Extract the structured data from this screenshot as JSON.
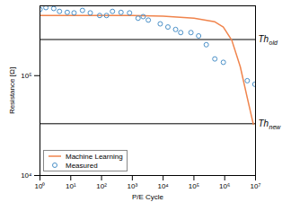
{
  "chart_data": {
    "type": "line",
    "x_label": "P/E Cycle",
    "y_label": "Resistance [Ω]",
    "log": true,
    "grid": false,
    "legend": "lower left",
    "xlim": [
      1,
      10000000
    ],
    "ylim": [
      10000,
      500000
    ],
    "xticks": [
      {
        "value": 1,
        "label": "10⁰"
      },
      {
        "value": 10,
        "label": "10¹"
      },
      {
        "value": 100,
        "label": "10²"
      },
      {
        "value": 1000,
        "label": "10³"
      },
      {
        "value": 10000,
        "label": "10⁴"
      },
      {
        "value": 100000,
        "label": "10⁵"
      },
      {
        "value": 1000000,
        "label": "10⁶"
      },
      {
        "value": 10000000,
        "label": "10⁷"
      }
    ],
    "yticks": [
      {
        "value": 10000,
        "label": "10⁴"
      },
      {
        "value": 100000,
        "label": "10⁵"
      }
    ],
    "series": [
      {
        "name": "Machine Learning",
        "type": "line",
        "line_style": "solid",
        "color": "#f0844c",
        "x": [
          1,
          1000,
          10000,
          100000,
          480000,
          900000,
          1700000,
          3200000,
          5400000,
          8500000
        ],
        "values": [
          400000,
          400000,
          395000,
          376000,
          346000,
          307000,
          226000,
          123000,
          60000,
          32600
        ]
      },
      {
        "name": "Measured",
        "type": "scatter",
        "marker": "circle",
        "color": "#4a90c8",
        "x": [
          1,
          1.56,
          2.8,
          4.3,
          7.7,
          12.8,
          24,
          43,
          87,
          145,
          226,
          428,
          811,
          1535,
          2250,
          3300,
          8050,
          14300,
          25400,
          37200,
          80000,
          142000,
          252000,
          477000,
          904000,
          5400000,
          9500000
        ],
        "values": [
          460000,
          480000,
          470000,
          440000,
          430000,
          425000,
          450000,
          425000,
          400000,
          400000,
          440000,
          430000,
          425000,
          376000,
          390000,
          360000,
          330000,
          307000,
          290000,
          270000,
          270000,
          250000,
          204000,
          147000,
          136000,
          89000,
          82000
        ]
      }
    ],
    "annotations": [
      {
        "label": "Th",
        "subscript": "old",
        "y": 230000
      },
      {
        "label": "Th",
        "subscript": "new",
        "y": 33000
      }
    ]
  }
}
